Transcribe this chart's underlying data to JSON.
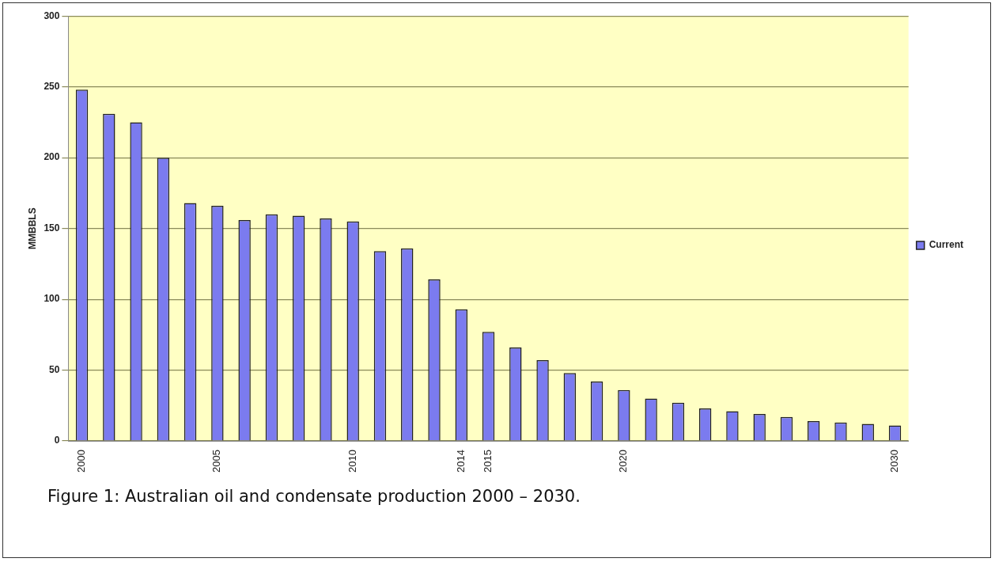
{
  "chart_data": {
    "type": "bar",
    "ylabel": "MMBBLS",
    "categories": [
      "2000",
      null,
      null,
      null,
      null,
      "2005",
      null,
      null,
      null,
      null,
      "2010",
      null,
      null,
      null,
      "2014",
      "2015",
      null,
      null,
      null,
      null,
      "2020",
      null,
      null,
      null,
      null,
      null,
      null,
      null,
      null,
      null,
      "2030"
    ],
    "series": [
      {
        "name": "Current",
        "color": "#7b7bef",
        "values": [
          248,
          231,
          225,
          200,
          168,
          166,
          156,
          160,
          159,
          157,
          155,
          134,
          136,
          114,
          93,
          77,
          66,
          57,
          48,
          42,
          36,
          30,
          27,
          23,
          21,
          19,
          17,
          14,
          13,
          12,
          11
        ]
      }
    ],
    "ylim": [
      0,
      300
    ],
    "yticks": [
      0,
      50,
      100,
      150,
      200,
      250,
      300
    ],
    "grid": "y",
    "legend": "right",
    "annotations": [
      "Figure 1:  Australian oil and condensate production 2000 – 2030."
    ]
  }
}
